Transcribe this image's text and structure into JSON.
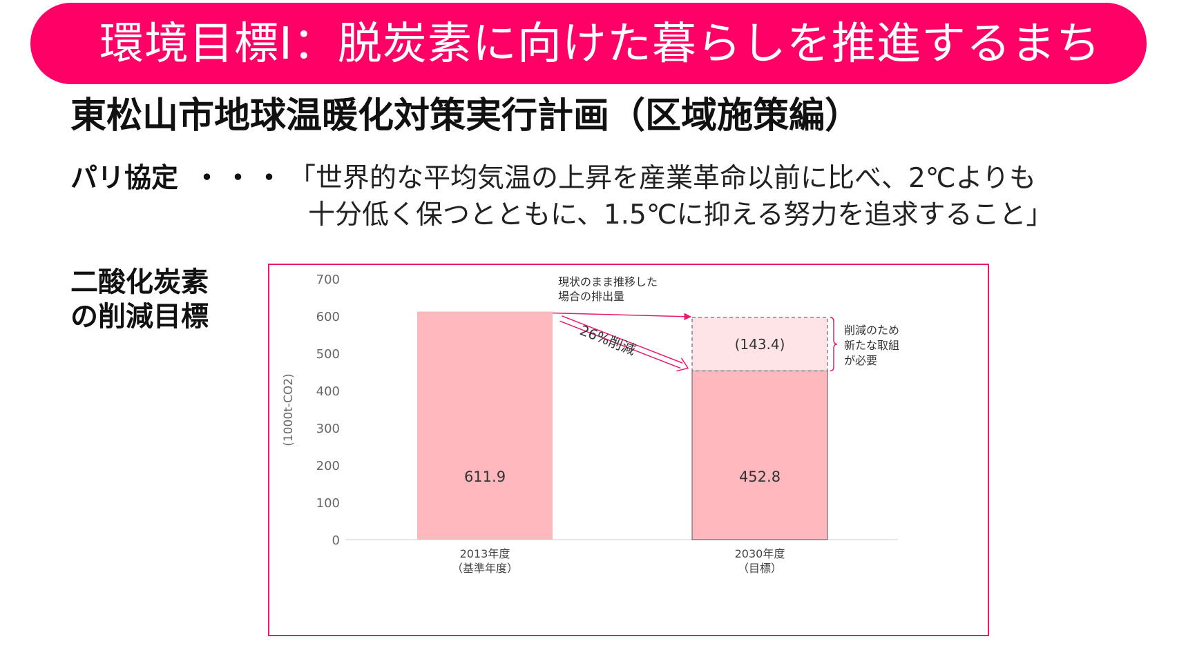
{
  "banner": {
    "title": "環境目標Ⅰ：脱炭素に向けた暮らしを推進するまち"
  },
  "plan_title": "東松山市地球温暖化対策実行計画（区域施策編）",
  "paris": {
    "label": "パリ協定",
    "dots": "・・・",
    "line1": "「世界的な平均気温の上昇を産業革命以前に比べ、2℃よりも",
    "line2": "十分低く保つとともに、1.5℃に抑える努力を追求すること」"
  },
  "co2_target": {
    "line1": "二酸化炭素",
    "line2": "の削減目標"
  },
  "colors": {
    "banner": "#ff0066",
    "frame": "#e8196e",
    "bar": "#ffb8be",
    "gap_bar": "#ffe4e7",
    "arrow": "#e8196e"
  },
  "chart_data": {
    "type": "bar",
    "ylabel": "(1000t-CO2)",
    "ylim": [
      0,
      700
    ],
    "yticks": [
      "0",
      "100",
      "200",
      "300",
      "400",
      "500",
      "600",
      "700"
    ],
    "categories": [
      {
        "line1": "2013年度",
        "line2": "（基準年度）"
      },
      {
        "line1": "2030年度",
        "line2": "（目標）"
      }
    ],
    "series": [
      {
        "name": "排出量",
        "values": [
          611.9,
          452.8
        ],
        "labels": [
          "611.9",
          "452.8"
        ]
      },
      {
        "name": "削減のため新たな取組が必要",
        "values": [
          0,
          143.4
        ],
        "labels": [
          "",
          "(143.4)"
        ]
      }
    ],
    "annotations": {
      "bau": {
        "line1": "現状のまま推移した",
        "line2": "場合の排出量",
        "value": 596.2
      },
      "reduction": "26%削減",
      "needed": {
        "line1": "削減のため",
        "line2": "新たな取組",
        "line3": "が必要"
      }
    }
  }
}
